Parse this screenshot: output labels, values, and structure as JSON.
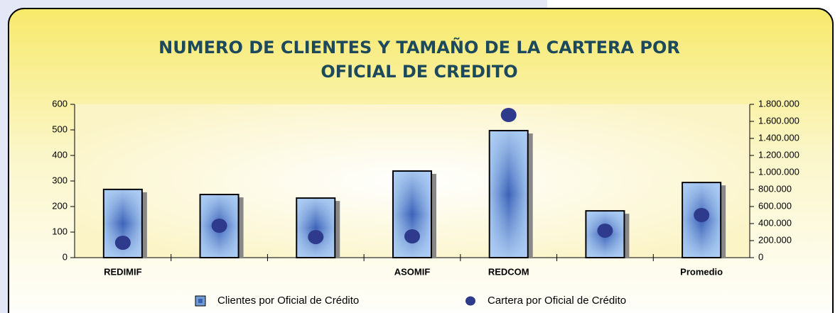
{
  "chart_data": {
    "type": "bar",
    "title": [
      "NUMERO DE CLIENTES Y TAMAÑO DE LA CARTERA POR",
      "OFICIAL DE CREDITO"
    ],
    "categories": [
      "REDIMIF",
      null,
      null,
      "ASOMIF",
      "REDCOM",
      null,
      "Promedio"
    ],
    "series": [
      {
        "name": "Clientes por Oficial de Crédito",
        "color": "#6f9bd6",
        "type": "bar",
        "values": [
          267,
          247,
          233,
          339,
          497,
          183,
          294
        ]
      },
      {
        "name": "Cartera por Oficial de Crédito",
        "color": "#2e3a8c",
        "type": "scatter",
        "axis": "y2",
        "values": [
          175000,
          375000,
          242000,
          250000,
          1675000,
          317000,
          500000
        ]
      }
    ],
    "ylim": [
      0,
      600
    ],
    "yticks": [
      0,
      100,
      200,
      300,
      400,
      500,
      600
    ],
    "y2lim": [
      0,
      1800000
    ],
    "y2ticks": [
      0,
      {
        "value": 200000,
        "label": "200.000"
      },
      {
        "value": 400000,
        "label": "400.000"
      },
      {
        "value": 600000,
        "label": "600.000"
      },
      {
        "value": 800000,
        "label": "800.000"
      },
      {
        "value": 1000000,
        "label": "1.000.000"
      },
      {
        "value": 1200000,
        "label": "1.200.000"
      },
      {
        "value": 1400000,
        "label": "1.400.000"
      },
      {
        "value": 1600000,
        "label": "1.600.000"
      },
      {
        "value": 1800000,
        "label": "1.800.000"
      }
    ],
    "grid": false,
    "legend": "bottom"
  }
}
